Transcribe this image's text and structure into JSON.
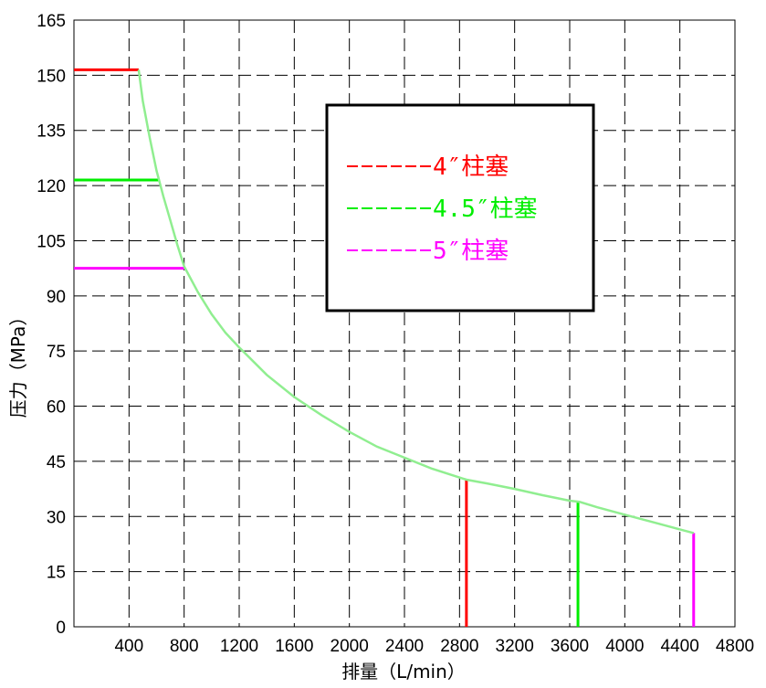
{
  "chart_data": {
    "type": "line",
    "title": "",
    "xlabel": "排量（L/min）",
    "ylabel": "压力（MPa）",
    "xlim": [
      0,
      4800
    ],
    "ylim": [
      0,
      165
    ],
    "x_ticks": [
      400,
      800,
      1200,
      1600,
      2000,
      2400,
      2800,
      3200,
      3600,
      4000,
      4400,
      4800
    ],
    "y_ticks": [
      0,
      15,
      30,
      45,
      60,
      75,
      90,
      105,
      120,
      135,
      150,
      165
    ],
    "grid": true,
    "legend_position": "top-right",
    "series": [
      {
        "name": "",
        "color": "#90ee90",
        "role": "pressure-flow curve",
        "x": [
          470,
          500,
          550,
          600,
          650,
          700,
          750,
          800,
          900,
          1000,
          1100,
          1200,
          1400,
          1600,
          1800,
          2000,
          2200,
          2400,
          2600,
          2850,
          3000,
          3200,
          3400,
          3600,
          3670,
          3800,
          4000,
          4200,
          4400,
          4500
        ],
        "y": [
          151.5,
          143,
          133,
          124,
          117,
          110.5,
          104,
          98,
          91,
          85,
          80,
          76,
          68.5,
          62.5,
          57.5,
          53,
          49,
          46,
          43,
          40,
          39,
          37.5,
          35.8,
          34.3,
          34,
          32.5,
          30.5,
          28.5,
          26.5,
          25.5
        ]
      }
    ],
    "plunger_limits": [
      {
        "label": "4″柱塞",
        "color": "#ff0000",
        "max_pressure": 151.5,
        "max_flow": 2850,
        "pressure_at_max_flow": 40
      },
      {
        "label": "4.5″柱塞",
        "color": "#00ee00",
        "max_pressure": 121.5,
        "max_flow": 3660,
        "pressure_at_max_flow": 34.3
      },
      {
        "label": "5″柱塞",
        "color": "#ff00ff",
        "max_pressure": 97.5,
        "max_flow": 4500,
        "pressure_at_max_flow": 25.5
      }
    ],
    "legend": [
      {
        "prefix": "-----",
        "label": "4″柱塞",
        "color": "#ff0000"
      },
      {
        "prefix": "-----",
        "label": "4.5″柱塞",
        "color": "#00ee00"
      },
      {
        "prefix": "-----",
        "label": "5″柱塞",
        "color": "#ff00ff"
      }
    ]
  }
}
